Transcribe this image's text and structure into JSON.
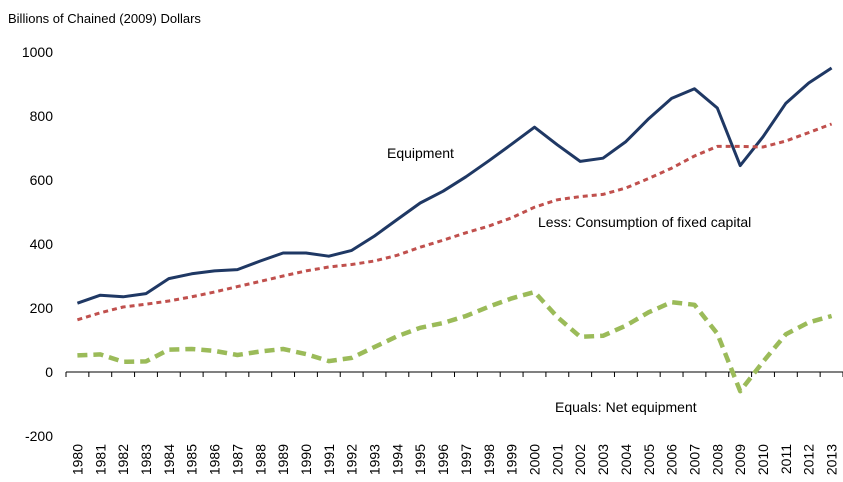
{
  "chart_data": {
    "type": "line",
    "y_label": "Billions of Chained (2009) Dollars",
    "categories": [
      "1980",
      "1981",
      "1982",
      "1983",
      "1984",
      "1985",
      "1986",
      "1987",
      "1988",
      "1989",
      "1990",
      "1991",
      "1992",
      "1993",
      "1994",
      "1995",
      "1996",
      "1997",
      "1998",
      "1999",
      "2000",
      "2001",
      "2002",
      "2003",
      "2004",
      "2005",
      "2006",
      "2007",
      "2008",
      "2009",
      "2010",
      "2011",
      "2012",
      "2013"
    ],
    "series": [
      {
        "name": "Equipment",
        "color": "#1f3864",
        "dash": "solid",
        "values": [
          215,
          240,
          235,
          245,
          292,
          307,
          316,
          320,
          347,
          372,
          372,
          362,
          380,
          425,
          477,
          528,
          565,
          610,
          660,
          712,
          765,
          710,
          658,
          668,
          720,
          792,
          855,
          885,
          825,
          645,
          735,
          840,
          903,
          950
        ]
      },
      {
        "name": "Less:  Consumption of fixed capital",
        "color": "#c0504d",
        "dash": "short",
        "values": [
          163,
          185,
          203,
          212,
          222,
          235,
          250,
          267,
          283,
          300,
          316,
          328,
          336,
          347,
          365,
          390,
          412,
          435,
          456,
          482,
          515,
          538,
          548,
          555,
          575,
          605,
          637,
          675,
          705,
          705,
          703,
          722,
          748,
          775
        ]
      },
      {
        "name": "Equals:  Net equipment",
        "color": "#9bbb59",
        "dash": "long",
        "values": [
          52,
          55,
          32,
          33,
          70,
          72,
          66,
          53,
          64,
          72,
          56,
          34,
          44,
          78,
          112,
          138,
          153,
          175,
          204,
          230,
          250,
          172,
          110,
          113,
          145,
          187,
          218,
          210,
          120,
          -60,
          32,
          118,
          155,
          175
        ]
      }
    ],
    "ylim": [
      -200,
      1000
    ],
    "yticks": [
      -200,
      0,
      200,
      400,
      600,
      800,
      1000
    ]
  }
}
